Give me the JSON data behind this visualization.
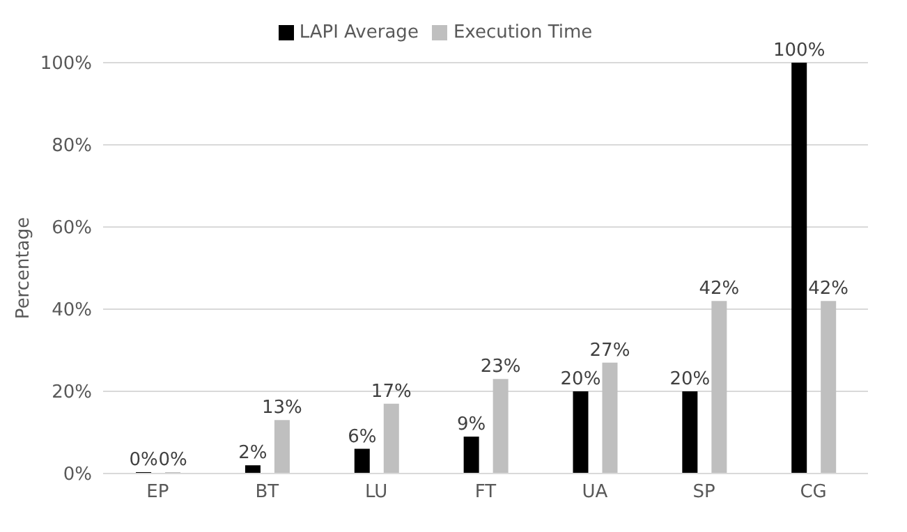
{
  "chart_data": {
    "type": "bar",
    "ylabel": "Percentage",
    "categories": [
      "EP",
      "BT",
      "LU",
      "FT",
      "UA",
      "SP",
      "CG"
    ],
    "series": [
      {
        "name": "LAPI Average",
        "color": "#000000",
        "values": [
          0,
          2,
          6,
          9,
          20,
          20,
          100
        ],
        "value_labels": [
          "0%",
          "2%",
          "6%",
          "9%",
          "20%",
          "20%",
          "100%"
        ]
      },
      {
        "name": "Execution Time",
        "color": "#bfbfbf",
        "values": [
          0,
          13,
          17,
          23,
          27,
          42,
          42
        ],
        "value_labels": [
          "0%",
          "13%",
          "17%",
          "23%",
          "27%",
          "42%",
          "42%"
        ]
      }
    ],
    "ylim": [
      0,
      100
    ],
    "yticks": [
      {
        "value": 0,
        "label": "0%"
      },
      {
        "value": 20,
        "label": "20%"
      },
      {
        "value": 40,
        "label": "40%"
      },
      {
        "value": 60,
        "label": "60%"
      },
      {
        "value": 80,
        "label": "80%"
      },
      {
        "value": 100,
        "label": "100%"
      }
    ],
    "grid": "y",
    "legend": "top"
  }
}
